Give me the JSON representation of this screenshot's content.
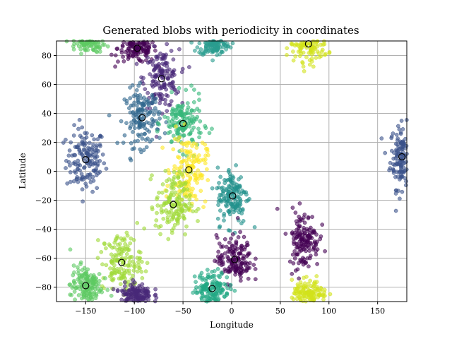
{
  "chart_data": {
    "type": "scatter",
    "title": "Generated blobs with periodicity in coordinates",
    "xlabel": "Longitude",
    "ylabel": "Latitude",
    "xlim": [
      -180,
      180
    ],
    "ylim": [
      -90,
      90
    ],
    "xticks": [
      -150,
      -100,
      -50,
      0,
      50,
      100,
      150
    ],
    "yticks": [
      -80,
      -60,
      -40,
      -20,
      0,
      20,
      40,
      60,
      80
    ],
    "grid": true,
    "clusters": [
      {
        "center": [
          -150,
          8
        ],
        "color": "#3b528b",
        "spread": [
          10,
          11
        ]
      },
      {
        "center": [
          175,
          10
        ],
        "color": "#3b528b",
        "spread": [
          6,
          11
        ]
      },
      {
        "center": [
          -97,
          85
        ],
        "color": "#440154",
        "spread": [
          10,
          5
        ]
      },
      {
        "center": [
          -72,
          64
        ],
        "color": "#482878",
        "spread": [
          9,
          10
        ]
      },
      {
        "center": [
          -18,
          88
        ],
        "color": "#2a9d8f",
        "spread": [
          8,
          4
        ]
      },
      {
        "center": [
          -150,
          90
        ],
        "color": "#5ec962",
        "spread": [
          10,
          4
        ]
      },
      {
        "center": [
          79,
          88
        ],
        "color": "#d2e21b",
        "spread": [
          10,
          6
        ]
      },
      {
        "center": [
          -92,
          37
        ],
        "color": "#31688e",
        "spread": [
          9,
          10
        ]
      },
      {
        "center": [
          -50,
          33
        ],
        "color": "#35b779",
        "spread": [
          10,
          9
        ]
      },
      {
        "center": [
          -44,
          1
        ],
        "color": "#fde725",
        "spread": [
          9,
          12
        ]
      },
      {
        "center": [
          -60,
          -23
        ],
        "color": "#a0da39",
        "spread": [
          9,
          11
        ]
      },
      {
        "center": [
          1,
          -17
        ],
        "color": "#21918c",
        "spread": [
          8,
          10
        ]
      },
      {
        "center": [
          74,
          -47
        ],
        "color": "#440154",
        "spread": [
          8,
          10
        ]
      },
      {
        "center": [
          -113,
          -63
        ],
        "color": "#a0da39",
        "spread": [
          10,
          10
        ]
      },
      {
        "center": [
          -150,
          -79
        ],
        "color": "#5ec962",
        "spread": [
          8,
          7
        ]
      },
      {
        "center": [
          3,
          -61
        ],
        "color": "#440154",
        "spread": [
          9,
          8
        ]
      },
      {
        "center": [
          -20,
          -81
        ],
        "color": "#22a884",
        "spread": [
          9,
          6
        ]
      },
      {
        "center": [
          -98,
          -85
        ],
        "color": "#482878",
        "spread": [
          8,
          4
        ]
      },
      {
        "center": [
          80,
          -86
        ],
        "color": "#d2e21b",
        "spread": [
          9,
          5
        ]
      }
    ],
    "centers": [
      [
        -150,
        8
      ],
      [
        175,
        10
      ],
      [
        -97,
        85
      ],
      [
        -72,
        64
      ],
      [
        79,
        88
      ],
      [
        -92,
        37
      ],
      [
        -50,
        33
      ],
      [
        -44,
        1
      ],
      [
        -60,
        -23
      ],
      [
        1,
        -17
      ],
      [
        -113,
        -63
      ],
      [
        -150,
        -79
      ],
      [
        3,
        -61
      ],
      [
        -20,
        -81
      ]
    ]
  }
}
